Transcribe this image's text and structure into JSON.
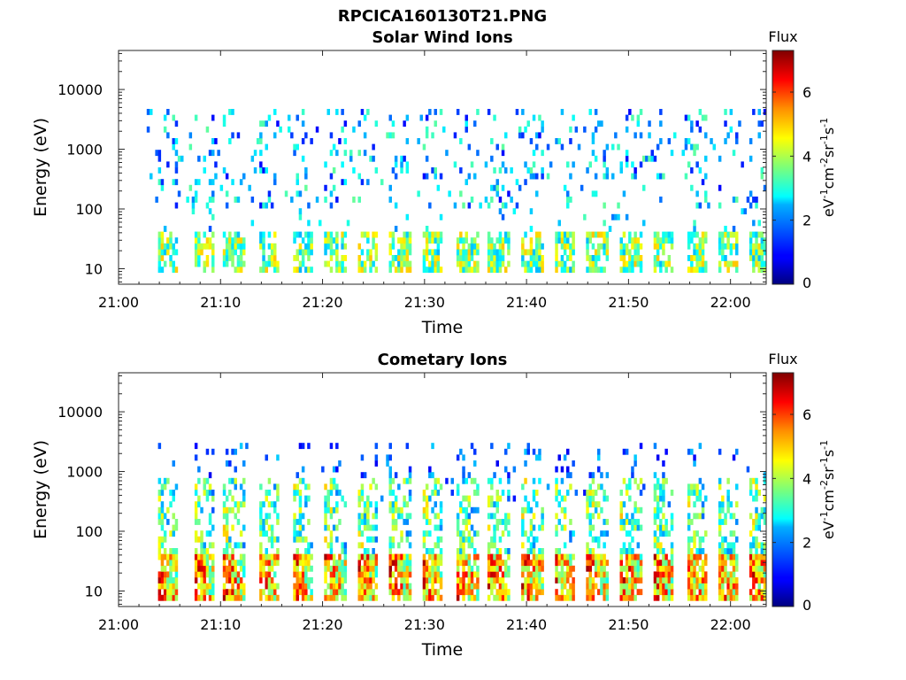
{
  "figure": {
    "title": "RPCICA160130T21.PNG"
  },
  "chart_data": [
    {
      "type": "heatmap",
      "title": "Solar Wind Ions",
      "xlabel": "Time",
      "ylabel": "Energy (eV)",
      "x_ticks": [
        "21:00",
        "21:10",
        "21:20",
        "21:30",
        "21:40",
        "21:50",
        "22:00"
      ],
      "x_range_minutes": [
        0,
        63.5
      ],
      "y_scale": "log",
      "y_range": [
        5.5,
        45000
      ],
      "y_ticks": [
        "10",
        "100",
        "1000",
        "10000"
      ],
      "colorbar": {
        "title": "Flux",
        "label": "eV-1cm-2sr-1s-1",
        "range": [
          0,
          7.3
        ],
        "ticks": [
          "0",
          "2",
          "4",
          "6"
        ],
        "colormap": "jet"
      },
      "pulse_times_min": [
        3.8,
        7.4,
        10.4,
        13.8,
        17.1,
        20.2,
        23.5,
        26.6,
        29.8,
        33.2,
        36.3,
        39.6,
        42.8,
        46.0,
        49.3,
        52.4,
        55.7,
        58.8,
        62.0
      ],
      "summary": {
        "low_band_ev": [
          10,
          40
        ],
        "low_band_flux": [
          2.5,
          5.0
        ],
        "scattered_ev": [
          100,
          5000
        ],
        "scattered_flux": [
          1.0,
          3.5
        ]
      }
    },
    {
      "type": "heatmap",
      "title": "Cometary Ions",
      "xlabel": "Time",
      "ylabel": "Energy (eV)",
      "x_ticks": [
        "21:00",
        "21:10",
        "21:20",
        "21:30",
        "21:40",
        "21:50",
        "22:00"
      ],
      "x_range_minutes": [
        0,
        63.5
      ],
      "y_scale": "log",
      "y_range": [
        5.5,
        45000
      ],
      "y_ticks": [
        "10",
        "100",
        "1000",
        "10000"
      ],
      "colorbar": {
        "title": "Flux",
        "label": "eV-1cm-2sr-1s-1",
        "range": [
          0,
          7.3
        ],
        "ticks": [
          "0",
          "2",
          "4",
          "6"
        ],
        "colormap": "jet"
      },
      "pulse_times_min": [
        3.8,
        7.4,
        10.4,
        13.8,
        17.1,
        20.2,
        23.5,
        26.6,
        29.8,
        33.2,
        36.3,
        39.6,
        42.8,
        46.0,
        49.3,
        52.4,
        55.7,
        58.8,
        62.0
      ],
      "summary": {
        "low_band_ev": [
          8,
          40
        ],
        "low_band_flux": [
          4.5,
          7.0
        ],
        "mid_band_ev": [
          40,
          600
        ],
        "mid_band_flux": [
          2.5,
          5.0
        ],
        "scattered_ev": [
          300,
          3000
        ],
        "scattered_flux": [
          1.0,
          2.5
        ]
      }
    }
  ]
}
